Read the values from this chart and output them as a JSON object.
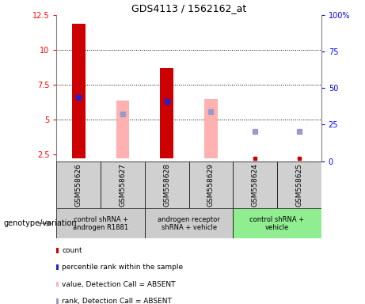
{
  "title": "GDS4113 / 1562162_at",
  "samples": [
    "GSM558626",
    "GSM558627",
    "GSM558628",
    "GSM558629",
    "GSM558624",
    "GSM558625"
  ],
  "red_bars": [
    11.9,
    null,
    8.7,
    null,
    null,
    null
  ],
  "red_bar_bottom": [
    2.2,
    null,
    2.2,
    null,
    null,
    null
  ],
  "pink_bars": [
    null,
    6.35,
    null,
    6.5,
    null,
    null
  ],
  "pink_bar_bottom": [
    null,
    2.2,
    null,
    2.2,
    null,
    null
  ],
  "blue_squares_y": [
    6.6,
    null,
    6.3,
    null,
    null,
    null
  ],
  "light_blue_squares_y": [
    null,
    5.4,
    null,
    5.55,
    4.15,
    4.15
  ],
  "small_red_y": [
    null,
    null,
    null,
    null,
    2.22,
    2.22
  ],
  "ylim_left": [
    2.0,
    12.5
  ],
  "ylim_right": [
    0,
    100
  ],
  "yticks_left": [
    2.5,
    5.0,
    7.5,
    10.0,
    12.5
  ],
  "ytick_labels_left": [
    "2.5",
    "5",
    "7.5",
    "10",
    "12.5"
  ],
  "yticks_right": [
    0,
    25,
    50,
    75,
    100
  ],
  "ytick_labels_right": [
    "0",
    "25",
    "50",
    "75",
    "100%"
  ],
  "hlines": [
    5.0,
    7.5,
    10.0
  ],
  "bar_width": 0.3,
  "bar_color_red": "#cc0000",
  "bar_color_pink": "#ffb0b0",
  "dot_color_blue": "#2222cc",
  "dot_color_light_blue": "#9999cc",
  "dot_color_small_red": "#cc0000",
  "group_defs": [
    {
      "xmin": -0.5,
      "xmax": 1.5,
      "color": "#cccccc",
      "label": "control shRNA +\nandrogen R1881"
    },
    {
      "xmin": 1.5,
      "xmax": 3.5,
      "color": "#cccccc",
      "label": "androgen receptor\nshRNA + vehicle"
    },
    {
      "xmin": 3.5,
      "xmax": 5.5,
      "color": "#90ee90",
      "label": "control shRNA +\nvehicle"
    }
  ],
  "legend_items": [
    {
      "color": "#cc0000",
      "label": "count"
    },
    {
      "color": "#2222cc",
      "label": "percentile rank within the sample"
    },
    {
      "color": "#ffb0b0",
      "label": "value, Detection Call = ABSENT"
    },
    {
      "color": "#9999cc",
      "label": "rank, Detection Call = ABSENT"
    }
  ],
  "genotype_label": "genotype/variation"
}
